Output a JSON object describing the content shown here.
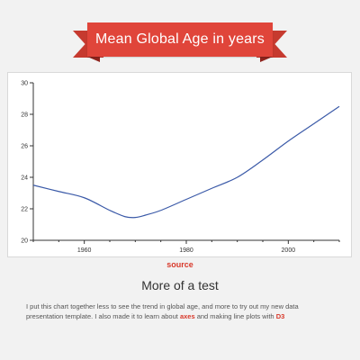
{
  "header": {
    "title": "Mean Global Age in years"
  },
  "source_label": "source",
  "subtitle": "More of a test",
  "description": {
    "part1": "I put this chart together less to see the trend in global age, and more to try out my new data presentation template. I also made it to learn about ",
    "link_axes": "axes",
    "part2": " and making line plots with ",
    "link_d3": "D3"
  },
  "colors": {
    "accent": "#e0453a",
    "line": "#3b5aa8",
    "link": "#d8392b"
  },
  "chart_data": {
    "type": "line",
    "title": "Mean Global Age in years",
    "xlabel": "",
    "ylabel": "",
    "xlim": [
      1950,
      2010
    ],
    "ylim": [
      20,
      30
    ],
    "x_ticks": [
      "1960",
      "1980",
      "2000"
    ],
    "y_ticks": [
      "20",
      "22",
      "24",
      "26",
      "28",
      "30"
    ],
    "grid": false,
    "series": [
      {
        "x": [
          1950,
          1955,
          1960,
          1965,
          1968,
          1970,
          1972,
          1975,
          1980,
          1985,
          1990,
          1995,
          2000,
          2005,
          2010
        ],
        "values": [
          23.5,
          23.1,
          22.7,
          21.9,
          21.5,
          21.45,
          21.6,
          21.9,
          22.6,
          23.3,
          24.0,
          25.1,
          26.3,
          27.4,
          28.5
        ]
      }
    ]
  }
}
